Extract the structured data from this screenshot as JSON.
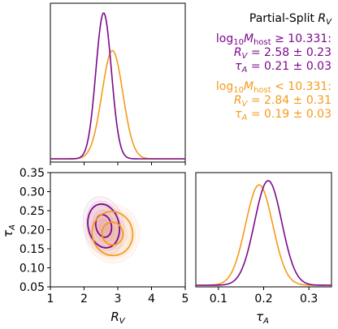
{
  "chart_data": {
    "type": "corner",
    "colors": {
      "high": "#7b0a8c",
      "low": "#f59a1a"
    },
    "annotation": {
      "title": "Partial-Split R_V",
      "high": {
        "cond": "log10M_host ≥ 10.331:",
        "rv": "R_V = 2.58 ± 0.23",
        "tau": "τ_A = 0.21 ± 0.03"
      },
      "low": {
        "cond": "log10M_host < 10.331:",
        "rv": "R_V = 2.84 ± 0.31",
        "tau": "τ_A = 0.19 ± 0.03"
      }
    },
    "marginal_rv": {
      "xlim": [
        1,
        5
      ],
      "series": [
        {
          "key": "high",
          "mean": 2.58,
          "sd": 0.23
        },
        {
          "key": "low",
          "mean": 2.84,
          "sd": 0.31
        }
      ]
    },
    "marginal_tau": {
      "xlim": [
        0.05,
        0.35
      ],
      "xticks": [
        "0.1",
        "0.2",
        "0.3"
      ],
      "xlabel": "τ_A",
      "series": [
        {
          "key": "high",
          "mean": 0.21,
          "sd": 0.03
        },
        {
          "key": "low",
          "mean": 0.19,
          "sd": 0.03
        }
      ]
    },
    "joint": {
      "xlim": [
        1,
        5
      ],
      "ylim": [
        0.05,
        0.35
      ],
      "xticks": [
        "1",
        "2",
        "3",
        "4",
        "5"
      ],
      "yticks": [
        "0.05",
        "0.10",
        "0.15",
        "0.20",
        "0.25",
        "0.30",
        "0.35"
      ],
      "xlabel": "R_V",
      "ylabel": "τ_A",
      "contours": [
        {
          "key": "high",
          "cx": 2.58,
          "cy": 0.21,
          "levels": [
            {
              "rx": 0.23,
              "ry": 0.03
            },
            {
              "rx": 0.46,
              "ry": 0.058
            }
          ]
        },
        {
          "key": "low",
          "cx": 2.84,
          "cy": 0.19,
          "levels": [
            {
              "rx": 0.31,
              "ry": 0.03
            },
            {
              "rx": 0.6,
              "ry": 0.058
            }
          ]
        }
      ]
    }
  }
}
